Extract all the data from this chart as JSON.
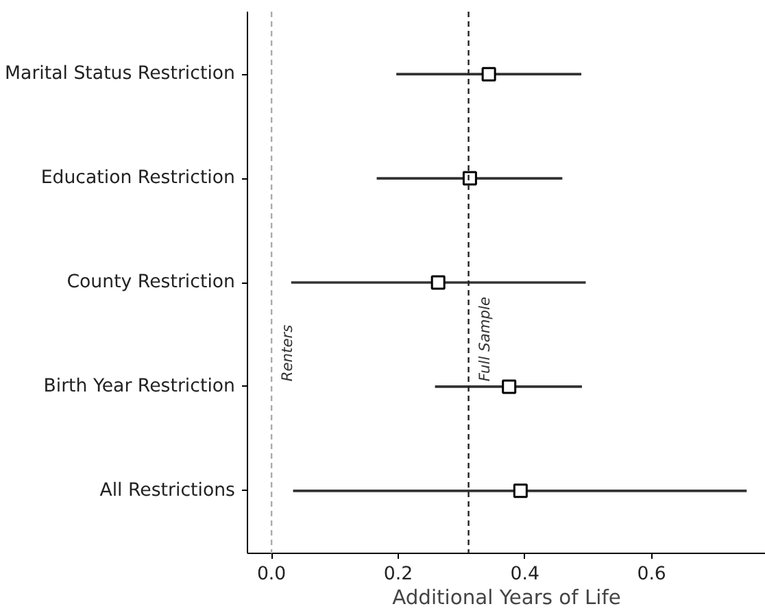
{
  "chart_data": {
    "type": "scatter",
    "orientation": "horizontal",
    "categories": [
      "Marital Status Restriction",
      "Education Restriction",
      "County Restriction",
      "Birth Year Restriction",
      "All Restrictions"
    ],
    "series": [
      {
        "color": "#000000",
        "values": [
          0.343,
          0.313,
          0.263,
          0.375,
          0.393
        ],
        "errors": [
          [
            0.197,
            0.489
          ],
          [
            0.166,
            0.459
          ],
          [
            0.031,
            0.496
          ],
          [
            0.258,
            0.49
          ],
          [
            0.034,
            0.75
          ]
        ]
      }
    ],
    "xlabel": "Additional Years of Life",
    "xlim": [
      -0.038,
      0.78
    ],
    "xticks": [
      {
        "value": 0,
        "label": "0.0"
      },
      0.2,
      0.4,
      0.6
    ],
    "ref_lines": [
      {
        "axis": "x",
        "value": 0,
        "label": "Renters",
        "color": "#aaaaaa",
        "line_style": "dashed"
      },
      {
        "axis": "x",
        "value": 0.311,
        "label": "Full Sample",
        "color": "#222222",
        "line_style": "dashed"
      }
    ],
    "marker": "square",
    "grid": false
  }
}
